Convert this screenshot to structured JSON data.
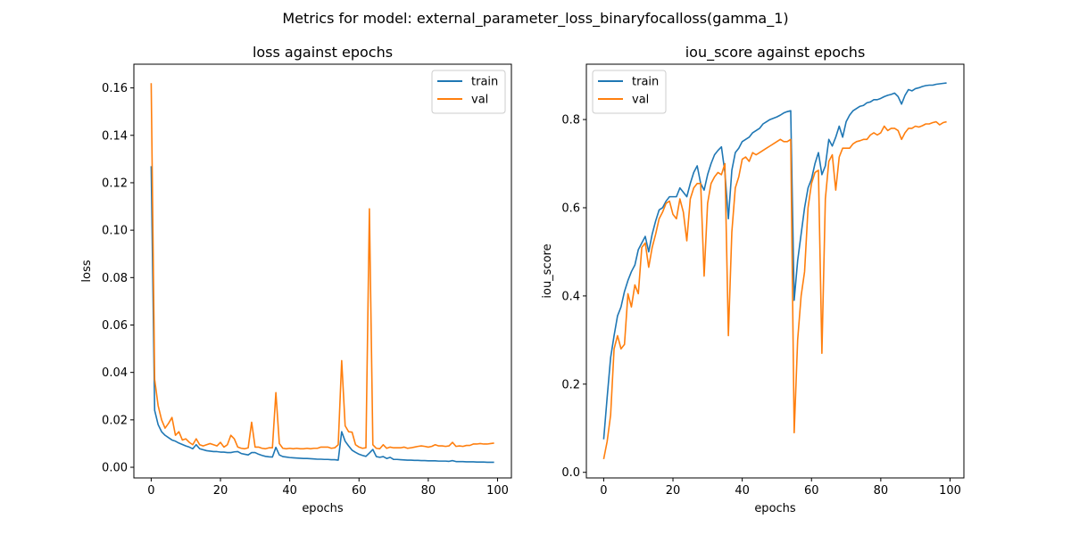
{
  "figure": {
    "suptitle": "Metrics for model: external_parameter_loss_binaryfocalloss(gamma_1)"
  },
  "colors": {
    "train": "#1f77b4",
    "val": "#ff7f0e"
  },
  "chart_data": [
    {
      "type": "line",
      "title": "loss against epochs",
      "xlabel": "epochs",
      "ylabel": "loss",
      "xlim": [
        -5,
        104
      ],
      "ylim": [
        -0.0045,
        0.17
      ],
      "xticks": [
        0,
        20,
        40,
        60,
        80,
        100
      ],
      "yticks": [
        0.0,
        0.02,
        0.04,
        0.06,
        0.08,
        0.1,
        0.12,
        0.14,
        0.16
      ],
      "ytick_labels": [
        "0.00",
        "0.02",
        "0.04",
        "0.06",
        "0.08",
        "0.10",
        "0.12",
        "0.14",
        "0.16"
      ],
      "grid": false,
      "legend": "top-right",
      "series": [
        {
          "name": "train",
          "x": [
            0,
            1,
            2,
            3,
            4,
            5,
            6,
            7,
            8,
            9,
            10,
            11,
            12,
            13,
            14,
            15,
            16,
            17,
            18,
            19,
            20,
            21,
            22,
            23,
            24,
            25,
            26,
            27,
            28,
            29,
            30,
            31,
            32,
            33,
            34,
            35,
            36,
            37,
            38,
            39,
            40,
            41,
            42,
            43,
            44,
            45,
            46,
            47,
            48,
            49,
            50,
            51,
            52,
            53,
            54,
            55,
            56,
            57,
            58,
            59,
            60,
            61,
            62,
            63,
            64,
            65,
            66,
            67,
            68,
            69,
            70,
            71,
            72,
            73,
            74,
            75,
            76,
            77,
            78,
            79,
            80,
            81,
            82,
            83,
            84,
            85,
            86,
            87,
            88,
            89,
            90,
            91,
            92,
            93,
            94,
            95,
            96,
            97,
            98,
            99
          ],
          "y": [
            0.127,
            0.024,
            0.018,
            0.015,
            0.0135,
            0.0125,
            0.0115,
            0.011,
            0.0102,
            0.0096,
            0.009,
            0.0085,
            0.0078,
            0.0095,
            0.0078,
            0.0074,
            0.007,
            0.0068,
            0.0066,
            0.0066,
            0.0064,
            0.0064,
            0.0062,
            0.0062,
            0.0065,
            0.0066,
            0.0058,
            0.0055,
            0.0052,
            0.0062,
            0.0062,
            0.0055,
            0.005,
            0.0046,
            0.0044,
            0.0043,
            0.0084,
            0.0052,
            0.0045,
            0.0043,
            0.0041,
            0.004,
            0.0039,
            0.0038,
            0.0037,
            0.0037,
            0.0036,
            0.0035,
            0.0034,
            0.0034,
            0.0033,
            0.0033,
            0.0032,
            0.0032,
            0.003,
            0.015,
            0.011,
            0.009,
            0.0072,
            0.0063,
            0.0055,
            0.005,
            0.0046,
            0.006,
            0.0075,
            0.0045,
            0.0042,
            0.0045,
            0.0037,
            0.0042,
            0.0033,
            0.0033,
            0.0032,
            0.0031,
            0.003,
            0.003,
            0.0029,
            0.0029,
            0.0028,
            0.0028,
            0.0027,
            0.0027,
            0.0027,
            0.0026,
            0.0026,
            0.0026,
            0.0025,
            0.0028,
            0.0024,
            0.0024,
            0.0024,
            0.0023,
            0.0023,
            0.0023,
            0.0022,
            0.0022,
            0.0022,
            0.0021,
            0.0021,
            0.0021
          ]
        },
        {
          "name": "val",
          "x": [
            0,
            1,
            2,
            3,
            4,
            5,
            6,
            7,
            8,
            9,
            10,
            11,
            12,
            13,
            14,
            15,
            16,
            17,
            18,
            19,
            20,
            21,
            22,
            23,
            24,
            25,
            26,
            27,
            28,
            29,
            30,
            31,
            32,
            33,
            34,
            35,
            36,
            37,
            38,
            39,
            40,
            41,
            42,
            43,
            44,
            45,
            46,
            47,
            48,
            49,
            50,
            51,
            52,
            53,
            54,
            55,
            56,
            57,
            58,
            59,
            60,
            61,
            62,
            63,
            64,
            65,
            66,
            67,
            68,
            69,
            70,
            71,
            72,
            73,
            74,
            75,
            76,
            77,
            78,
            79,
            80,
            81,
            82,
            83,
            84,
            85,
            86,
            87,
            88,
            89,
            90,
            91,
            92,
            93,
            94,
            95,
            96,
            97,
            98,
            99
          ],
          "y": [
            0.162,
            0.037,
            0.026,
            0.02,
            0.0165,
            0.0185,
            0.021,
            0.0135,
            0.015,
            0.0115,
            0.012,
            0.0105,
            0.0095,
            0.012,
            0.0095,
            0.009,
            0.0095,
            0.01,
            0.0095,
            0.009,
            0.0105,
            0.0085,
            0.0095,
            0.0135,
            0.012,
            0.0085,
            0.008,
            0.0078,
            0.0082,
            0.019,
            0.0085,
            0.0085,
            0.008,
            0.0078,
            0.0082,
            0.0082,
            0.0315,
            0.01,
            0.008,
            0.0078,
            0.008,
            0.0078,
            0.008,
            0.0078,
            0.0078,
            0.008,
            0.0078,
            0.008,
            0.008,
            0.0085,
            0.0085,
            0.0085,
            0.008,
            0.0082,
            0.0095,
            0.045,
            0.0175,
            0.015,
            0.0148,
            0.0095,
            0.0085,
            0.008,
            0.0082,
            0.109,
            0.0095,
            0.008,
            0.0078,
            0.0095,
            0.008,
            0.0085,
            0.0082,
            0.0082,
            0.0082,
            0.0085,
            0.008,
            0.0082,
            0.0085,
            0.0088,
            0.009,
            0.0088,
            0.0085,
            0.0088,
            0.0095,
            0.009,
            0.009,
            0.0088,
            0.009,
            0.0105,
            0.0088,
            0.009,
            0.0088,
            0.0092,
            0.0092,
            0.0098,
            0.0098,
            0.01,
            0.0098,
            0.0098,
            0.01,
            0.0102
          ]
        }
      ]
    },
    {
      "type": "line",
      "title": "iou_score against epochs",
      "xlabel": "epochs",
      "ylabel": "iou_score",
      "xlim": [
        -5,
        104
      ],
      "ylim": [
        -0.0127,
        0.9255
      ],
      "xticks": [
        0,
        20,
        40,
        60,
        80,
        100
      ],
      "yticks": [
        0.0,
        0.2,
        0.4,
        0.6,
        0.8
      ],
      "ytick_labels": [
        "0.0",
        "0.2",
        "0.4",
        "0.6",
        "0.8"
      ],
      "grid": false,
      "legend": "top-left",
      "series": [
        {
          "name": "train",
          "x": [
            0,
            1,
            2,
            3,
            4,
            5,
            6,
            7,
            8,
            9,
            10,
            11,
            12,
            13,
            14,
            15,
            16,
            17,
            18,
            19,
            20,
            21,
            22,
            23,
            24,
            25,
            26,
            27,
            28,
            29,
            30,
            31,
            32,
            33,
            34,
            35,
            36,
            37,
            38,
            39,
            40,
            41,
            42,
            43,
            44,
            45,
            46,
            47,
            48,
            49,
            50,
            51,
            52,
            53,
            54,
            55,
            56,
            57,
            58,
            59,
            60,
            61,
            62,
            63,
            64,
            65,
            66,
            67,
            68,
            69,
            70,
            71,
            72,
            73,
            74,
            75,
            76,
            77,
            78,
            79,
            80,
            81,
            82,
            83,
            84,
            85,
            86,
            87,
            88,
            89,
            90,
            91,
            92,
            93,
            94,
            95,
            96,
            97,
            98,
            99
          ],
          "y": [
            0.075,
            0.17,
            0.26,
            0.31,
            0.355,
            0.375,
            0.41,
            0.435,
            0.455,
            0.47,
            0.505,
            0.52,
            0.535,
            0.5,
            0.54,
            0.57,
            0.595,
            0.6,
            0.615,
            0.625,
            0.625,
            0.625,
            0.645,
            0.635,
            0.625,
            0.655,
            0.68,
            0.695,
            0.655,
            0.64,
            0.675,
            0.7,
            0.72,
            0.73,
            0.738,
            0.68,
            0.575,
            0.685,
            0.725,
            0.735,
            0.75,
            0.755,
            0.76,
            0.77,
            0.775,
            0.78,
            0.79,
            0.795,
            0.8,
            0.803,
            0.806,
            0.81,
            0.815,
            0.818,
            0.82,
            0.39,
            0.48,
            0.54,
            0.6,
            0.645,
            0.665,
            0.7,
            0.725,
            0.675,
            0.695,
            0.755,
            0.74,
            0.76,
            0.785,
            0.76,
            0.795,
            0.81,
            0.82,
            0.825,
            0.83,
            0.832,
            0.838,
            0.84,
            0.845,
            0.845,
            0.848,
            0.852,
            0.855,
            0.857,
            0.86,
            0.852,
            0.835,
            0.855,
            0.868,
            0.865,
            0.87,
            0.872,
            0.875,
            0.877,
            0.878,
            0.878,
            0.88,
            0.881,
            0.882,
            0.883
          ]
        },
        {
          "name": "val",
          "x": [
            0,
            1,
            2,
            3,
            4,
            5,
            6,
            7,
            8,
            9,
            10,
            11,
            12,
            13,
            14,
            15,
            16,
            17,
            18,
            19,
            20,
            21,
            22,
            23,
            24,
            25,
            26,
            27,
            28,
            29,
            30,
            31,
            32,
            33,
            34,
            35,
            36,
            37,
            38,
            39,
            40,
            41,
            42,
            43,
            44,
            45,
            46,
            47,
            48,
            49,
            50,
            51,
            52,
            53,
            54,
            55,
            56,
            57,
            58,
            59,
            60,
            61,
            62,
            63,
            64,
            65,
            66,
            67,
            68,
            69,
            70,
            71,
            72,
            73,
            74,
            75,
            76,
            77,
            78,
            79,
            80,
            81,
            82,
            83,
            84,
            85,
            86,
            87,
            88,
            89,
            90,
            91,
            92,
            93,
            94,
            95,
            96,
            97,
            98,
            99
          ],
          "y": [
            0.03,
            0.07,
            0.13,
            0.28,
            0.31,
            0.28,
            0.29,
            0.405,
            0.375,
            0.425,
            0.405,
            0.51,
            0.52,
            0.465,
            0.51,
            0.54,
            0.575,
            0.59,
            0.61,
            0.615,
            0.585,
            0.575,
            0.62,
            0.59,
            0.525,
            0.62,
            0.645,
            0.655,
            0.655,
            0.445,
            0.61,
            0.655,
            0.67,
            0.68,
            0.675,
            0.7,
            0.31,
            0.545,
            0.645,
            0.67,
            0.71,
            0.715,
            0.705,
            0.725,
            0.72,
            0.725,
            0.73,
            0.735,
            0.74,
            0.745,
            0.75,
            0.755,
            0.75,
            0.75,
            0.755,
            0.09,
            0.3,
            0.4,
            0.455,
            0.6,
            0.655,
            0.68,
            0.685,
            0.27,
            0.62,
            0.705,
            0.72,
            0.64,
            0.715,
            0.735,
            0.735,
            0.735,
            0.745,
            0.75,
            0.752,
            0.755,
            0.755,
            0.765,
            0.77,
            0.765,
            0.77,
            0.785,
            0.775,
            0.78,
            0.78,
            0.775,
            0.755,
            0.77,
            0.78,
            0.78,
            0.785,
            0.783,
            0.786,
            0.79,
            0.79,
            0.793,
            0.795,
            0.788,
            0.793,
            0.795
          ]
        }
      ]
    }
  ]
}
